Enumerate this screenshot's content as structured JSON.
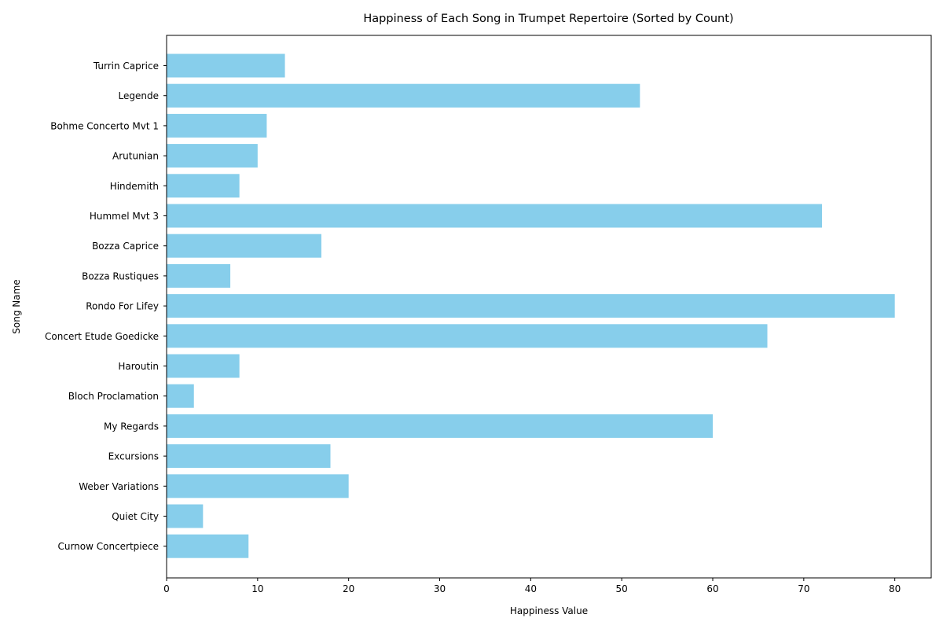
{
  "chart_data": {
    "type": "bar",
    "orientation": "horizontal",
    "title": "Happiness of Each Song in Trumpet Repertoire (Sorted by Count)",
    "xlabel": "Happiness Value",
    "ylabel": "Song Name",
    "xlim": [
      0,
      84
    ],
    "xticks": [
      0,
      10,
      20,
      30,
      40,
      50,
      60,
      70,
      80
    ],
    "grid": false,
    "bar_color": "#87ceeb",
    "categories": [
      "Turrin Caprice",
      "Legende",
      "Bohme Concerto Mvt 1",
      "Arutunian",
      "Hindemith",
      "Hummel Mvt 3",
      "Bozza Caprice",
      "Bozza Rustiques",
      "Rondo For Lifey",
      "Concert Etude Goedicke",
      "Haroutin",
      "Bloch Proclamation",
      "My Regards",
      "Excursions",
      "Weber Variations",
      "Quiet City",
      "Curnow Concertpiece"
    ],
    "values": [
      13,
      52,
      11,
      10,
      8,
      72,
      17,
      7,
      80,
      66,
      8,
      3,
      60,
      18,
      20,
      4,
      9
    ]
  }
}
